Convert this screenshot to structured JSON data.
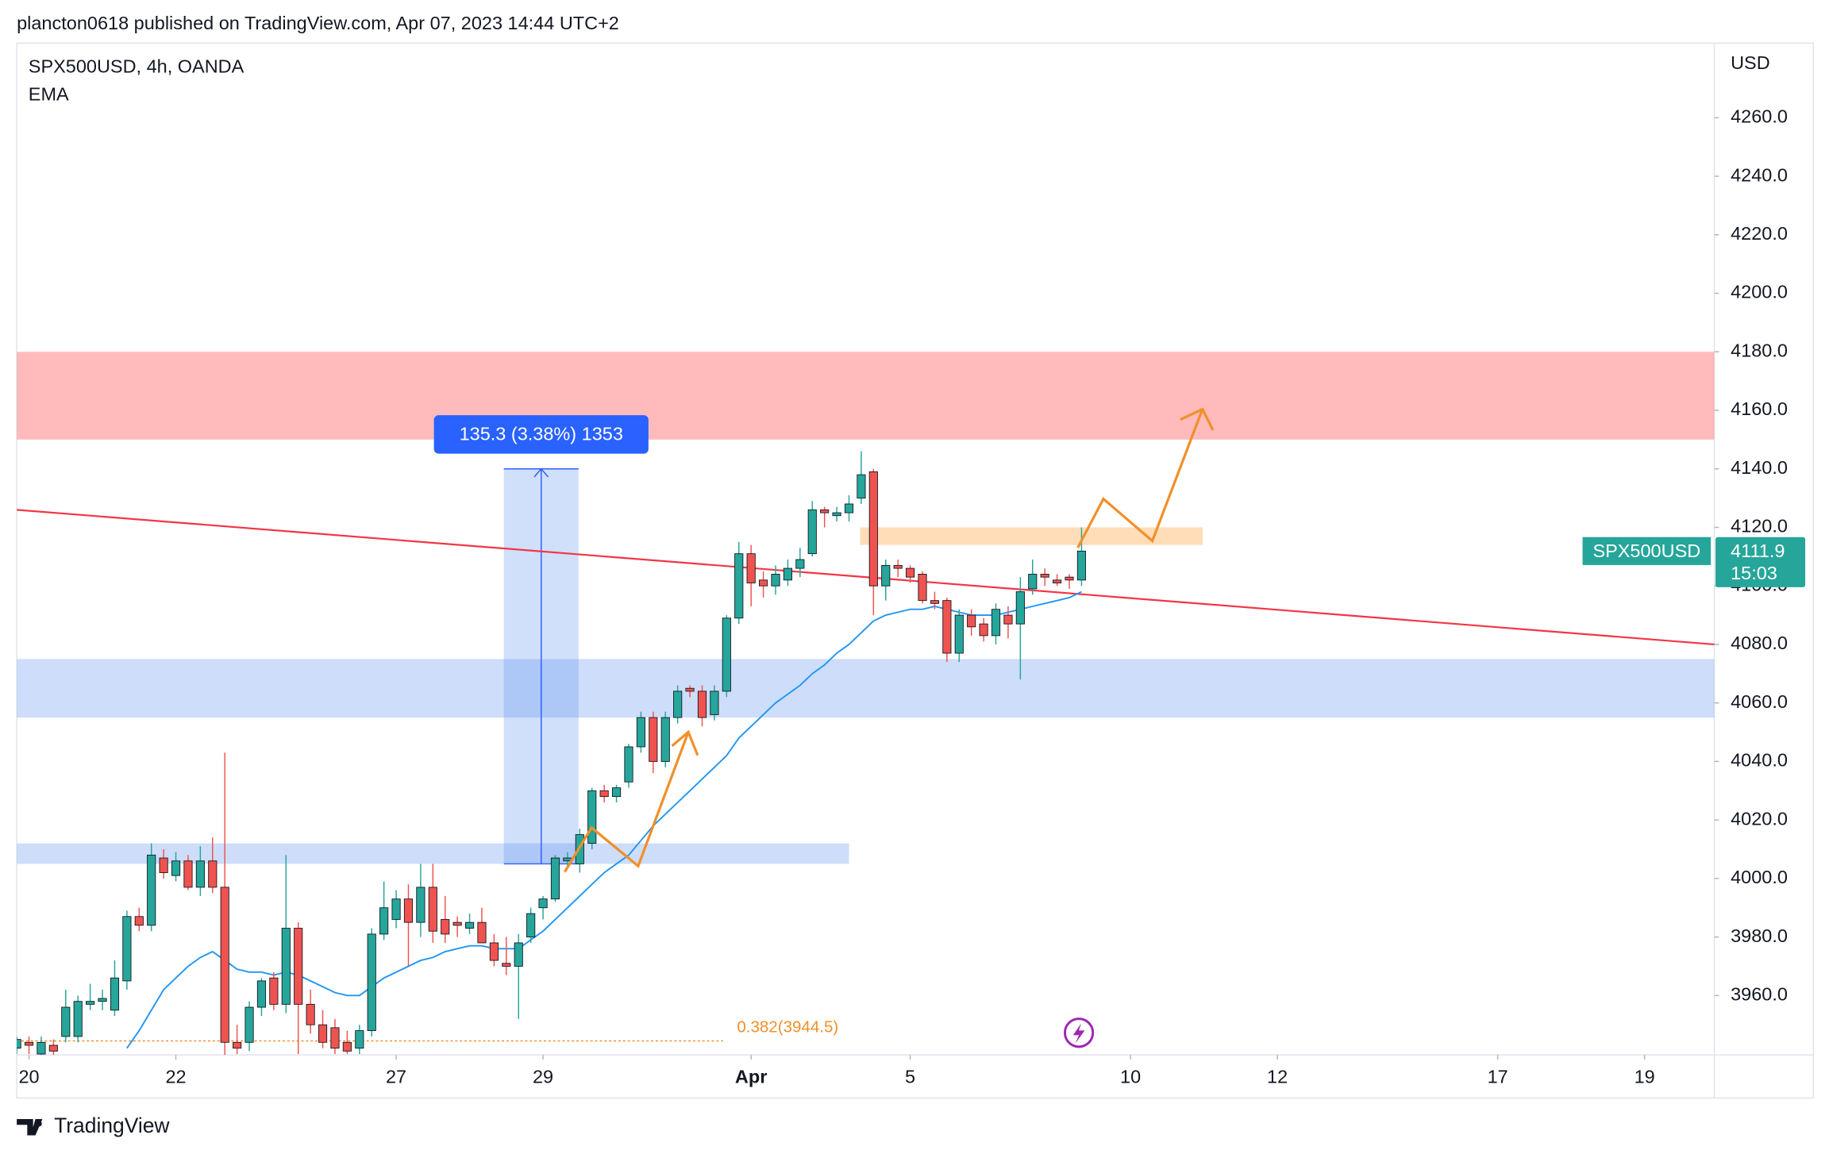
{
  "chart_data": {
    "type": "candlestick",
    "header": "plancton0618 published on TradingView.com, Apr 07, 2023 14:44 UTC+2",
    "symbol_line": "SPX500USD, 4h, OANDA",
    "currency": "USD",
    "brand": "TradingView",
    "up_color": "#26a69a",
    "down_color": "#ef5350",
    "open": [
      3942,
      3944,
      3940,
      3943,
      3946,
      3946,
      3957,
      3958,
      3955,
      3965,
      3987,
      3984,
      4007,
      4001,
      4006,
      3997,
      4006,
      3997,
      3944,
      3944,
      3956,
      3966,
      3957,
      3983,
      3957,
      3950,
      3949,
      3944,
      3942,
      3948,
      3981,
      3986,
      3993,
      3985,
      3997,
      3986,
      3985,
      3983,
      3985,
      3978,
      3971,
      3970,
      3980,
      3990,
      3993,
      4006,
      4005,
      4012,
      4030,
      4028,
      4033,
      4045,
      4055,
      4040,
      4055,
      4065,
      4064,
      4056,
      4064,
      4089,
      4111,
      4102,
      4100,
      4102,
      4106,
      4111,
      4126,
      4124,
      4125,
      4130,
      4139,
      4100,
      4107,
      4106,
      4104,
      4095,
      4095,
      4077,
      4090,
      4087,
      4083,
      4090,
      4087,
      4099,
      4104,
      4102,
      4103,
      4102
    ],
    "high": [
      3946,
      3946,
      3946,
      3945,
      3962,
      3960,
      3964,
      3962,
      3972,
      3989,
      3990,
      4012,
      4010,
      4009,
      4008,
      4011,
      4014,
      4043,
      3950,
      3958,
      3966,
      3968,
      4008,
      3985,
      3962,
      3955,
      3952,
      3948,
      3950,
      3983,
      3999,
      3996,
      3998,
      4005,
      4005,
      3994,
      3987,
      3988,
      3990,
      3981,
      3980,
      3981,
      3990,
      3994,
      4008,
      4009,
      4017,
      4031,
      4032,
      4032,
      4046,
      4057,
      4057,
      4057,
      4066,
      4066,
      4066,
      4066,
      4090,
      4115,
      4114,
      4105,
      4107,
      4109,
      4113,
      4129,
      4127,
      4127,
      4131,
      4146,
      4140,
      4109,
      4109,
      4107,
      4105,
      4098,
      4096,
      4092,
      4092,
      4089,
      4094,
      4093,
      4103,
      4109,
      4106,
      4104,
      4104,
      4120
    ],
    "low": [
      3940,
      3940,
      3938,
      3938,
      3944,
      3944,
      3955,
      3955,
      3953,
      3962,
      3982,
      3982,
      4000,
      3999,
      3996,
      3994,
      3995,
      3939,
      3940,
      3941,
      3953,
      3955,
      3954,
      3940,
      3947,
      3942,
      3940,
      3940,
      3940,
      3946,
      3979,
      3983,
      3970,
      3980,
      3978,
      3978,
      3980,
      3981,
      3978,
      3970,
      3967,
      3952,
      3978,
      3986,
      3992,
      4004,
      4002,
      4010,
      4026,
      4026,
      4031,
      4043,
      4036,
      4038,
      4053,
      4062,
      4052,
      4054,
      4062,
      4087,
      4093,
      4096,
      4097,
      4100,
      4103,
      4110,
      4120,
      4122,
      4122,
      4128,
      4090,
      4095,
      4103,
      4101,
      4094,
      4092,
      4074,
      4074,
      4083,
      4081,
      4080,
      4082,
      4068,
      4097,
      4100,
      4100,
      4099,
      4100
    ],
    "close": [
      3945,
      3943,
      3944,
      3941,
      3956,
      3958,
      3958,
      3959,
      3966,
      3987,
      3984,
      4008,
      4002,
      4006,
      3997,
      4006,
      3997,
      3944,
      3942,
      3956,
      3965,
      3957,
      3983,
      3957,
      3950,
      3944,
      3942,
      3941,
      3948,
      3981,
      3990,
      3993,
      3985,
      3997,
      3982,
      3981,
      3984,
      3985,
      3978,
      3972,
      3970,
      3978,
      3988,
      3993,
      4007,
      4007,
      4015,
      4030,
      4028,
      4031,
      4045,
      4055,
      4040,
      4055,
      4064,
      4064,
      4055,
      4064,
      4089,
      4111,
      4101,
      4100,
      4104,
      4106,
      4109,
      4126,
      4125,
      4125,
      4128,
      4138,
      4100,
      4107,
      4106,
      4103,
      4095,
      4094,
      4077,
      4090,
      4086,
      4083,
      4092,
      4087,
      4098,
      4104,
      4103,
      4101,
      4102,
      4111.9
    ],
    "series": [
      {
        "name": "EMA",
        "color": "#2196f3",
        "values": [
          null,
          null,
          null,
          null,
          null,
          null,
          null,
          null,
          null,
          3942,
          3948,
          3955,
          3962,
          3966,
          3970,
          3973,
          3975,
          3972,
          3969,
          3968,
          3968,
          3967,
          3968,
          3967,
          3965,
          3963,
          3961,
          3960,
          3960,
          3963,
          3966,
          3968,
          3970,
          3972,
          3973,
          3975,
          3976,
          3977,
          3977,
          3976,
          3976,
          3976,
          3979,
          3982,
          3986,
          3990,
          3994,
          3998,
          4002,
          4005,
          4008,
          4013,
          4018,
          4022,
          4026,
          4030,
          4034,
          4038,
          4042,
          4048,
          4052,
          4056,
          4060,
          4063,
          4066,
          4070,
          4073,
          4077,
          4080,
          4084,
          4088,
          4090,
          4091,
          4092,
          4092,
          4093,
          4092,
          4091,
          4090,
          4090,
          4090,
          4091,
          4092,
          4093,
          4094,
          4095,
          4096,
          4098
        ]
      }
    ],
    "xlim": [
      0,
      138.7
    ],
    "xticks": [
      {
        "value": 1,
        "label": "20"
      },
      {
        "value": 13,
        "label": "22"
      },
      {
        "value": 31,
        "label": "27"
      },
      {
        "value": 43,
        "label": "29"
      },
      {
        "value": 60,
        "label": "Apr"
      },
      {
        "value": 73,
        "label": "5"
      },
      {
        "value": 91,
        "label": "10"
      },
      {
        "value": 103,
        "label": "12"
      },
      {
        "value": 121,
        "label": "17"
      },
      {
        "value": 133,
        "label": "19"
      }
    ],
    "ylim": [
      3939.7,
      4285.5
    ],
    "yticks": [
      {
        "value": 3960,
        "label": "3960.0"
      },
      {
        "value": 3980,
        "label": "3980.0"
      },
      {
        "value": 4000,
        "label": "4000.0"
      },
      {
        "value": 4020,
        "label": "4020.0"
      },
      {
        "value": 4040,
        "label": "4040.0"
      },
      {
        "value": 4060,
        "label": "4060.0"
      },
      {
        "value": 4080,
        "label": "4080.0"
      },
      {
        "value": 4100,
        "label": "4100.0"
      },
      {
        "value": 4120,
        "label": "4120.0"
      },
      {
        "value": 4140,
        "label": "4140.0"
      },
      {
        "value": 4160,
        "label": "4160.0"
      },
      {
        "value": 4180,
        "label": "4180.0"
      },
      {
        "value": 4200,
        "label": "4200.0"
      },
      {
        "value": 4220,
        "label": "4220.0"
      },
      {
        "value": 4240,
        "label": "4240.0"
      },
      {
        "value": 4260,
        "label": "4260.0"
      }
    ],
    "zones": [
      {
        "x": [
          0,
          138.7
        ],
        "y": [
          4150,
          4180
        ],
        "color": "rgba(255,120,120,0.5)"
      },
      {
        "x": [
          0,
          138.7
        ],
        "y": [
          4055,
          4075
        ],
        "color": "rgba(100,150,240,0.32)"
      },
      {
        "x": [
          0,
          68
        ],
        "y": [
          4005,
          4012
        ],
        "color": "rgba(100,150,240,0.32)"
      },
      {
        "x": [
          68.9,
          96.9
        ],
        "y": [
          4114,
          4120
        ],
        "color": "rgba(255,170,80,0.4)"
      }
    ],
    "trendline": {
      "x": [
        0,
        138.7
      ],
      "y": [
        4126,
        4080
      ],
      "color": "#f23645"
    },
    "measure": {
      "x": [
        39.8,
        45.9
      ],
      "y": [
        4005,
        4140
      ],
      "label": "135.3 (3.38%) 1353"
    },
    "fib": {
      "x": [
        0,
        57.7
      ],
      "y": 3944.5,
      "label": "0.382(3944.5)",
      "color": "#f0902a"
    },
    "price_tag": {
      "name": "SPX500USD",
      "countdown": "15:03"
    }
  }
}
